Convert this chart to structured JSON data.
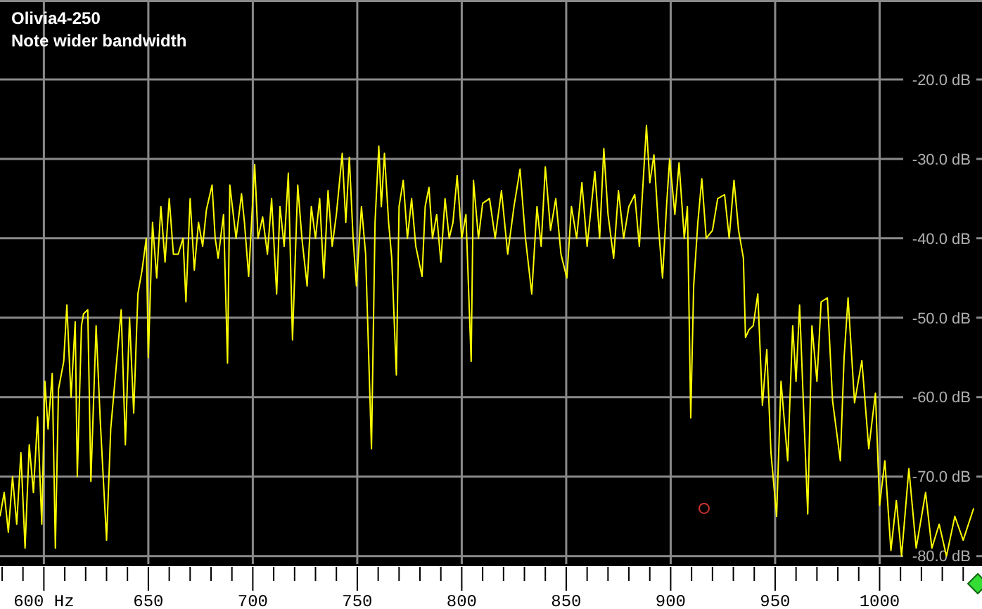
{
  "chart_data": {
    "type": "line",
    "title": "Olivia4-250",
    "subtitle": "Note wider bandwidth",
    "xlim": [
      579,
      1049
    ],
    "ylim": [
      -81,
      -10
    ],
    "xticks": [
      {
        "value": 580,
        "label": null
      },
      {
        "value": 590,
        "label": null
      },
      {
        "value": 600,
        "label": "600 Hz"
      },
      {
        "value": 610,
        "label": null
      },
      {
        "value": 620,
        "label": null
      },
      {
        "value": 630,
        "label": null
      },
      {
        "value": 640,
        "label": null
      },
      650,
      {
        "value": 660,
        "label": null
      },
      {
        "value": 670,
        "label": null
      },
      {
        "value": 680,
        "label": null
      },
      {
        "value": 690,
        "label": null
      },
      700,
      {
        "value": 710,
        "label": null
      },
      {
        "value": 720,
        "label": null
      },
      {
        "value": 730,
        "label": null
      },
      {
        "value": 740,
        "label": null
      },
      750,
      {
        "value": 760,
        "label": null
      },
      {
        "value": 770,
        "label": null
      },
      {
        "value": 780,
        "label": null
      },
      {
        "value": 790,
        "label": null
      },
      800,
      {
        "value": 810,
        "label": null
      },
      {
        "value": 820,
        "label": null
      },
      {
        "value": 830,
        "label": null
      },
      {
        "value": 840,
        "label": null
      },
      850,
      {
        "value": 860,
        "label": null
      },
      {
        "value": 870,
        "label": null
      },
      {
        "value": 880,
        "label": null
      },
      {
        "value": 890,
        "label": null
      },
      900,
      {
        "value": 910,
        "label": null
      },
      {
        "value": 920,
        "label": null
      },
      {
        "value": 930,
        "label": null
      },
      {
        "value": 940,
        "label": null
      },
      950,
      {
        "value": 960,
        "label": null
      },
      {
        "value": 970,
        "label": null
      },
      {
        "value": 980,
        "label": null
      },
      {
        "value": 990,
        "label": null
      },
      1000,
      {
        "value": 1010,
        "label": null
      },
      {
        "value": 1020,
        "label": null
      },
      {
        "value": 1030,
        "label": null
      },
      {
        "value": 1040,
        "label": null
      }
    ],
    "yticks": [
      {
        "value": -20,
        "label": "-20.0 dB"
      },
      {
        "value": -30,
        "label": "-30.0 dB"
      },
      {
        "value": -40,
        "label": "-40.0 dB"
      },
      {
        "value": -50,
        "label": "-50.0 dB"
      },
      {
        "value": -60,
        "label": "-60.0 dB"
      },
      {
        "value": -70,
        "label": "-70.0 dB"
      },
      {
        "value": -80,
        "label": "-80.0 dB"
      }
    ],
    "grid": true,
    "line_style": "solid",
    "marker": "none",
    "series": [
      {
        "color": "#ffff00",
        "x": [
          579,
          581,
          583,
          585,
          587,
          589,
          591,
          593,
          595,
          597,
          599,
          600.5,
          602,
          604,
          605.5,
          607,
          609.5,
          611,
          613,
          615,
          616,
          618,
          619,
          621,
          622.5,
          625,
          627,
          630,
          632,
          635,
          637,
          639,
          641,
          643,
          645,
          647,
          649,
          650,
          652,
          654,
          656,
          658,
          660,
          662,
          664.3,
          666.6,
          668,
          670,
          672,
          674,
          676,
          677.8,
          680.5,
          682,
          683.4,
          686,
          687.9,
          689,
          692,
          694.6,
          696,
          698,
          700.9,
          702.5,
          704.7,
          707,
          709,
          711.4,
          713,
          715,
          717,
          719,
          721.5,
          723.5,
          726,
          728,
          730,
          732,
          734,
          736,
          738,
          740,
          742.8,
          744.5,
          746.2,
          748,
          749.6,
          752,
          754,
          756.8,
          758.5,
          760.3,
          761.5,
          763,
          765,
          766.5,
          768.7,
          770,
          772,
          774,
          776,
          778,
          781,
          782.5,
          784.3,
          786,
          788,
          790,
          792,
          794,
          795.8,
          797.8,
          800,
          802,
          804.5,
          805.6,
          808,
          810,
          813.3,
          816,
          819,
          822,
          825,
          827.9,
          830.5,
          833.5,
          836,
          838,
          840,
          842.5,
          845,
          847.5,
          850.3,
          852.5,
          855,
          857.5,
          860,
          863.7,
          866,
          868,
          870,
          872.7,
          875,
          877.5,
          880,
          882.8,
          885,
          888.4,
          890,
          892,
          894,
          896.1,
          898,
          899.5,
          902,
          904,
          906.5,
          908,
          909.6,
          911,
          913,
          914.9,
          917,
          920,
          922.5,
          925.8,
          928,
          930.3,
          932.5,
          934.8,
          935.8,
          937.5,
          939.5,
          941.7,
          943.9,
          946,
          948,
          950.7,
          952.8,
          956,
          958.4,
          960,
          961.7,
          964,
          965.6,
          967.6,
          970,
          972,
          975,
          977.5,
          981.2,
          983,
          984.9,
          988,
          991.5,
          994.8,
          998,
          1000,
          1002.5,
          1005.4,
          1008,
          1010.5,
          1014,
          1017.5,
          1022,
          1025,
          1028.5,
          1032,
          1036,
          1040,
          1045
        ],
        "values": [
          -75,
          -72,
          -77,
          -70,
          -76,
          -67,
          -79,
          -66,
          -72,
          -62.5,
          -76,
          -58,
          -64,
          -57,
          -79,
          -59,
          -55.5,
          -48.4,
          -60,
          -50.5,
          -70,
          -51,
          -49.5,
          -49,
          -70.6,
          -51,
          -63,
          -78,
          -64,
          -55,
          -49,
          -66,
          -50,
          -62,
          -47,
          -44,
          -40,
          -55,
          -38,
          -45,
          -36,
          -43,
          -35,
          -42,
          -42,
          -40,
          -48,
          -35,
          -44,
          -38,
          -41,
          -36.4,
          -33.3,
          -40,
          -42.5,
          -37,
          -55.7,
          -33.3,
          -40,
          -34.4,
          -38,
          -44.8,
          -30.7,
          -40,
          -37.3,
          -42,
          -35,
          -47,
          -36,
          -41,
          -31.8,
          -52.8,
          -33.3,
          -40,
          -46,
          -36,
          -40,
          -35,
          -45,
          -34,
          -41,
          -37,
          -29.3,
          -38,
          -29.8,
          -40,
          -46,
          -36,
          -42,
          -66.5,
          -38,
          -28.4,
          -36,
          -29.3,
          -38,
          -42.5,
          -57.2,
          -36,
          -32.7,
          -40,
          -35,
          -41,
          -44.8,
          -36,
          -33.6,
          -40,
          -37,
          -43,
          -35,
          -40,
          -38,
          -32.1,
          -40,
          -37,
          -55.5,
          -32.7,
          -40,
          -35.6,
          -35,
          -40,
          -34,
          -42,
          -36,
          -31.3,
          -40,
          -47,
          -36,
          -41,
          -31,
          -39,
          -35,
          -42,
          -45,
          -36,
          -40,
          -33,
          -41,
          -31.6,
          -40,
          -28.7,
          -37,
          -42.5,
          -34,
          -40,
          -36,
          -34.5,
          -41,
          -25.8,
          -33,
          -29.5,
          -38,
          -45,
          -36,
          -30,
          -37,
          -30.5,
          -40,
          -36,
          -62.6,
          -46,
          -38,
          -32.5,
          -40,
          -39,
          -35,
          -34.5,
          -40,
          -32.7,
          -39,
          -42.5,
          -52.5,
          -51.5,
          -51,
          -47,
          -61,
          -54,
          -67,
          -75,
          -58,
          -68,
          -51,
          -58,
          -48.4,
          -64,
          -74.7,
          -51,
          -58,
          -48,
          -47.5,
          -60.5,
          -68,
          -55,
          -47.5,
          -60.7,
          -55.4,
          -66.5,
          -59.5,
          -73.6,
          -68,
          -79.3,
          -73,
          -80,
          -69,
          -79,
          -72,
          -79,
          -76,
          -80,
          -75,
          -78,
          -74
        ]
      },
      {
        "type": "scatter",
        "color": "#cc3333",
        "marker": "circle",
        "x": [
          916
        ],
        "values": [
          -74
        ]
      }
    ]
  }
}
